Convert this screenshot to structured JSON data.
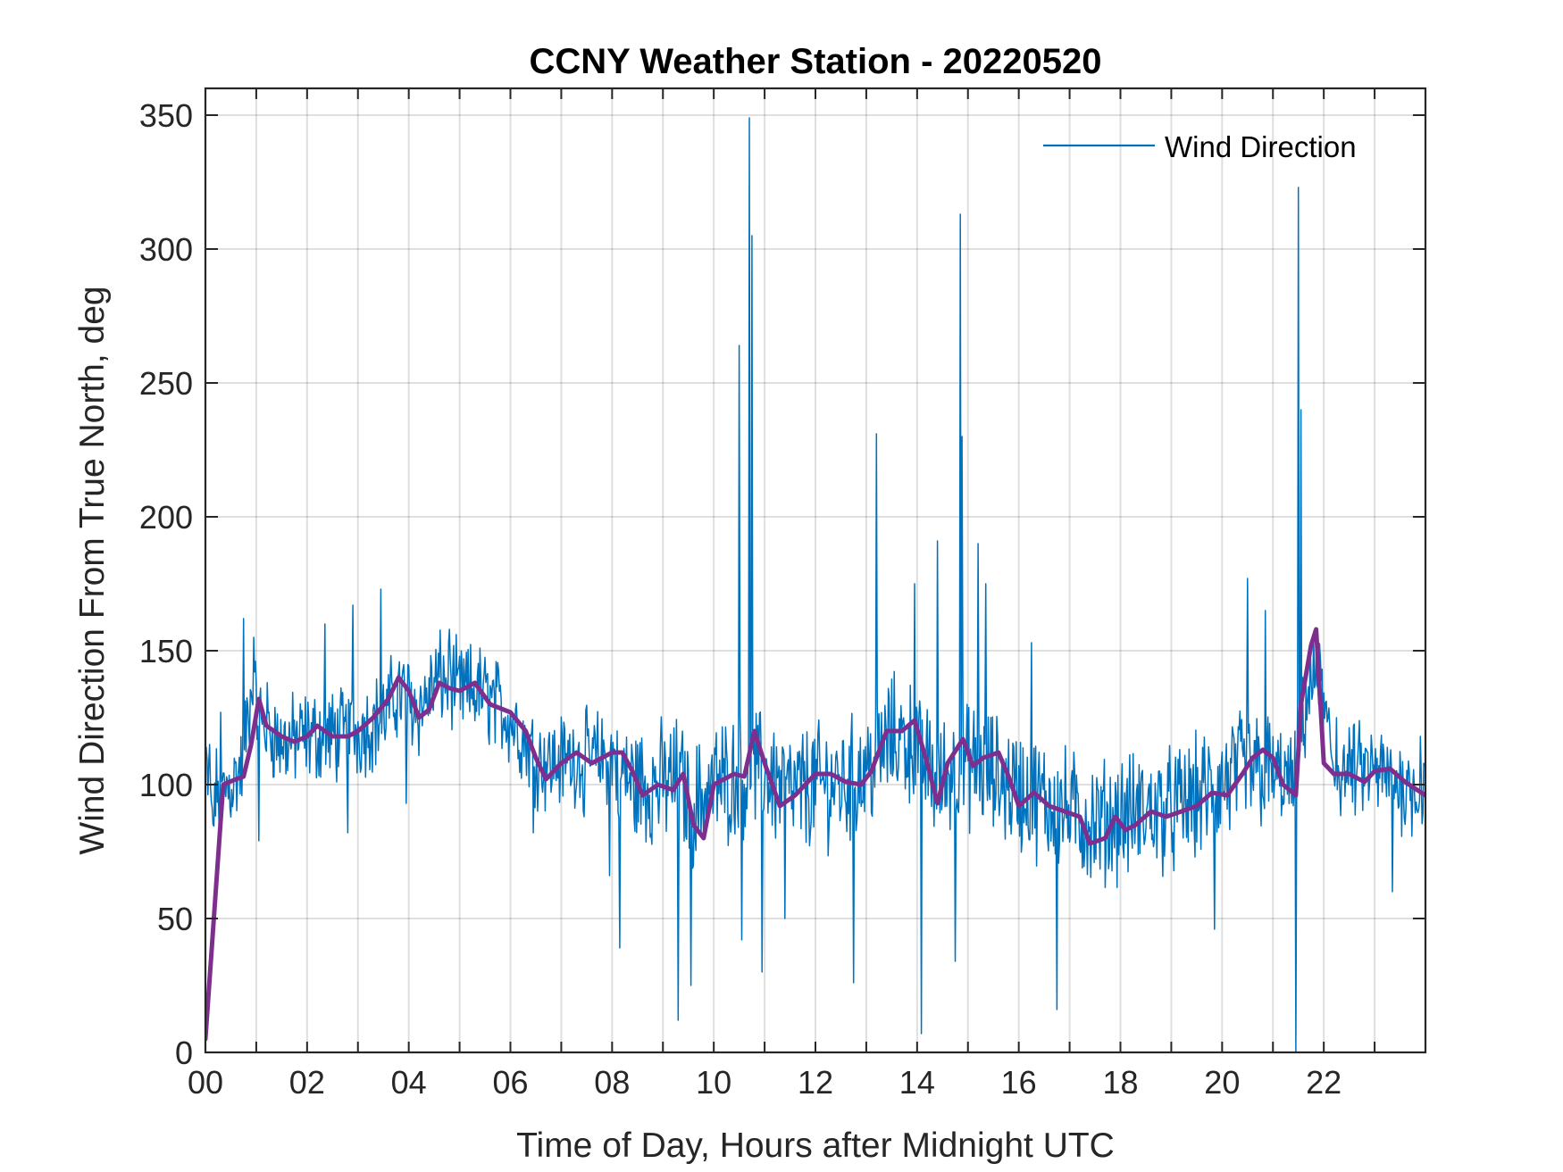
{
  "chart_data": {
    "type": "line",
    "title": "CCNY Weather Station - 20220520",
    "xlabel": "Time of Day, Hours after Midnight UTC",
    "ylabel": "Wind Direction From True North, deg",
    "xlim": [
      0,
      24
    ],
    "ylim": [
      0,
      360
    ],
    "x_ticks": [
      0,
      2,
      4,
      6,
      8,
      10,
      12,
      14,
      16,
      18,
      20,
      22
    ],
    "x_tick_labels": [
      "00",
      "02",
      "04",
      "06",
      "08",
      "10",
      "12",
      "14",
      "16",
      "18",
      "20",
      "22"
    ],
    "y_ticks": [
      0,
      50,
      100,
      150,
      200,
      250,
      300,
      350
    ],
    "y_tick_labels": [
      "0",
      "50",
      "100",
      "150",
      "200",
      "250",
      "300",
      "350"
    ],
    "grid": true,
    "legend": {
      "position": "top-right",
      "entries": [
        "Wind Direction"
      ]
    },
    "series": [
      {
        "name": "Wind Direction",
        "color": "#0072BD",
        "style": "raw-noisy",
        "base_x": [
          0,
          0.1,
          0.5,
          0.7,
          0.9,
          1.1,
          1.5,
          2.0,
          2.5,
          3.0,
          3.5,
          3.8,
          4.2,
          4.6,
          5.0,
          5.4,
          6.0,
          6.5,
          6.8,
          7.2,
          7.6,
          8.0,
          8.4,
          8.9,
          9.3,
          9.6,
          10.0,
          10.5,
          11.0,
          11.5,
          12.0,
          12.5,
          13.0,
          13.5,
          14.0,
          14.4,
          14.8,
          15.4,
          15.8,
          16.3,
          17.0,
          17.5,
          18.0,
          18.5,
          19.0,
          19.5,
          20.0,
          20.4,
          20.9,
          21.4,
          21.7,
          21.9,
          22.2,
          22.6,
          23.0,
          23.5,
          24.0
        ],
        "base_y": [
          105,
          95,
          100,
          105,
          135,
          125,
          115,
          118,
          118,
          120,
          125,
          135,
          128,
          140,
          135,
          135,
          125,
          110,
          108,
          110,
          110,
          110,
          100,
          100,
          102,
          92,
          100,
          103,
          105,
          96,
          100,
          100,
          105,
          118,
          115,
          100,
          108,
          105,
          100,
          95,
          90,
          85,
          88,
          90,
          90,
          95,
          100,
          105,
          105,
          100,
          135,
          140,
          105,
          105,
          105,
          100,
          98
        ],
        "spikes": [
          {
            "x": 0.08,
            "y": 115
          },
          {
            "x": 0.15,
            "y": 85
          },
          {
            "x": 0.3,
            "y": 127
          },
          {
            "x": 0.75,
            "y": 162
          },
          {
            "x": 0.95,
            "y": 155
          },
          {
            "x": 1.05,
            "y": 79
          },
          {
            "x": 2.35,
            "y": 160
          },
          {
            "x": 2.8,
            "y": 82
          },
          {
            "x": 2.9,
            "y": 167
          },
          {
            "x": 3.45,
            "y": 173
          },
          {
            "x": 3.95,
            "y": 93
          },
          {
            "x": 4.8,
            "y": 158
          },
          {
            "x": 6.45,
            "y": 82
          },
          {
            "x": 7.45,
            "y": 88
          },
          {
            "x": 7.95,
            "y": 66
          },
          {
            "x": 8.15,
            "y": 39
          },
          {
            "x": 9.3,
            "y": 12
          },
          {
            "x": 9.55,
            "y": 25
          },
          {
            "x": 10.5,
            "y": 264
          },
          {
            "x": 10.55,
            "y": 42
          },
          {
            "x": 10.7,
            "y": 349
          },
          {
            "x": 10.75,
            "y": 305
          },
          {
            "x": 10.95,
            "y": 30
          },
          {
            "x": 11.4,
            "y": 50
          },
          {
            "x": 12.75,
            "y": 26
          },
          {
            "x": 13.2,
            "y": 231
          },
          {
            "x": 13.95,
            "y": 175
          },
          {
            "x": 14.08,
            "y": 7
          },
          {
            "x": 14.4,
            "y": 191
          },
          {
            "x": 14.75,
            "y": 34
          },
          {
            "x": 14.85,
            "y": 313
          },
          {
            "x": 14.88,
            "y": 230
          },
          {
            "x": 15.2,
            "y": 190
          },
          {
            "x": 15.35,
            "y": 175
          },
          {
            "x": 16.25,
            "y": 153
          },
          {
            "x": 16.75,
            "y": 16
          },
          {
            "x": 19.85,
            "y": 46
          },
          {
            "x": 20.5,
            "y": 177
          },
          {
            "x": 20.85,
            "y": 165
          },
          {
            "x": 21.45,
            "y": 0
          },
          {
            "x": 21.5,
            "y": 323
          },
          {
            "x": 21.55,
            "y": 240
          },
          {
            "x": 21.85,
            "y": 150
          },
          {
            "x": 22.25,
            "y": 125
          },
          {
            "x": 23.35,
            "y": 60
          },
          {
            "x": 23.9,
            "y": 118
          }
        ]
      },
      {
        "name": "Smoothed (unlabeled)",
        "color": "#7E2F8E",
        "style": "smooth",
        "x": [
          0,
          0.35,
          0.6,
          0.75,
          0.9,
          1.05,
          1.2,
          1.5,
          1.75,
          2.0,
          2.2,
          2.5,
          2.8,
          3.0,
          3.3,
          3.6,
          3.8,
          4.0,
          4.2,
          4.4,
          4.6,
          4.8,
          5.0,
          5.3,
          5.6,
          6.0,
          6.3,
          6.5,
          6.7,
          7.0,
          7.3,
          7.6,
          8.0,
          8.2,
          8.4,
          8.6,
          8.9,
          9.2,
          9.4,
          9.6,
          9.8,
          10.0,
          10.4,
          10.6,
          10.8,
          11.0,
          11.3,
          11.6,
          12.0,
          12.3,
          12.6,
          12.9,
          13.1,
          13.4,
          13.7,
          13.95,
          14.2,
          14.4,
          14.6,
          14.9,
          15.1,
          15.3,
          15.6,
          15.8,
          16.0,
          16.3,
          16.6,
          16.9,
          17.2,
          17.4,
          17.7,
          17.9,
          18.1,
          18.3,
          18.6,
          18.9,
          19.2,
          19.5,
          19.8,
          20.1,
          20.4,
          20.6,
          20.8,
          21.0,
          21.2,
          21.45,
          21.55,
          21.75,
          21.85,
          22.0,
          22.2,
          22.5,
          22.8,
          23.0,
          23.3,
          23.6,
          24.0
        ],
        "y": [
          5,
          100,
          102,
          103,
          115,
          132,
          122,
          118,
          116,
          118,
          122,
          118,
          118,
          120,
          125,
          132,
          140,
          135,
          125,
          128,
          138,
          136,
          135,
          138,
          130,
          127,
          120,
          110,
          102,
          108,
          112,
          108,
          112,
          112,
          105,
          96,
          100,
          98,
          104,
          85,
          80,
          100,
          104,
          103,
          120,
          108,
          92,
          96,
          104,
          104,
          101,
          100,
          105,
          120,
          120,
          124,
          108,
          93,
          108,
          117,
          107,
          110,
          112,
          103,
          92,
          97,
          92,
          90,
          88,
          78,
          80,
          88,
          83,
          85,
          90,
          88,
          90,
          92,
          97,
          96,
          104,
          110,
          113,
          110,
          100,
          96,
          130,
          152,
          158,
          108,
          104,
          104,
          101,
          105,
          106,
          101,
          96
        ]
      }
    ]
  }
}
